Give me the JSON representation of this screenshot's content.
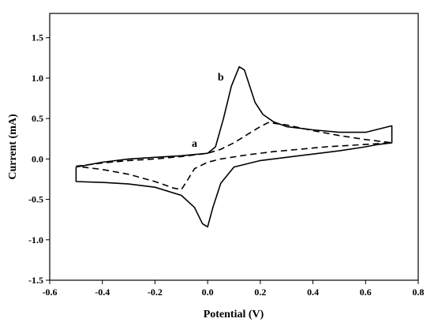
{
  "chart_data": {
    "type": "line",
    "title": "",
    "xlabel": "Potential (V)",
    "ylabel": "Current (mA)",
    "xlim": [
      -0.6,
      0.8
    ],
    "ylim": [
      -1.5,
      1.8
    ],
    "x_ticks": [
      "-0.6",
      "-0.4",
      "-0.2",
      "0.0",
      "0.2",
      "0.4",
      "0.6",
      "0.8"
    ],
    "y_ticks": [
      "-1.5",
      "-1.0",
      "-0.5",
      "0.0",
      "0.5",
      "1.0",
      "1.5"
    ],
    "grid": false,
    "series": [
      {
        "name": "a",
        "style": "dashed",
        "color": "#000000",
        "points": [
          [
            -0.5,
            -0.09
          ],
          [
            -0.4,
            -0.05
          ],
          [
            -0.3,
            -0.02
          ],
          [
            -0.2,
            0.0
          ],
          [
            -0.1,
            0.03
          ],
          [
            0.0,
            0.07
          ],
          [
            0.05,
            0.12
          ],
          [
            0.1,
            0.2
          ],
          [
            0.15,
            0.3
          ],
          [
            0.2,
            0.4
          ],
          [
            0.23,
            0.45
          ],
          [
            0.3,
            0.42
          ],
          [
            0.4,
            0.35
          ],
          [
            0.5,
            0.29
          ],
          [
            0.6,
            0.24
          ],
          [
            0.7,
            0.2
          ],
          [
            0.65,
            0.19
          ],
          [
            0.55,
            0.17
          ],
          [
            0.45,
            0.15
          ],
          [
            0.35,
            0.12
          ],
          [
            0.25,
            0.09
          ],
          [
            0.15,
            0.05
          ],
          [
            0.05,
            0.0
          ],
          [
            0.0,
            -0.04
          ],
          [
            -0.05,
            -0.12
          ],
          [
            -0.08,
            -0.28
          ],
          [
            -0.1,
            -0.38
          ],
          [
            -0.13,
            -0.36
          ],
          [
            -0.2,
            -0.28
          ],
          [
            -0.3,
            -0.19
          ],
          [
            -0.4,
            -0.13
          ],
          [
            -0.5,
            -0.09
          ]
        ]
      },
      {
        "name": "b",
        "style": "solid",
        "color": "#000000",
        "points": [
          [
            -0.5,
            -0.1
          ],
          [
            -0.4,
            -0.04
          ],
          [
            -0.3,
            0.0
          ],
          [
            -0.2,
            0.02
          ],
          [
            -0.1,
            0.04
          ],
          [
            0.0,
            0.07
          ],
          [
            0.03,
            0.15
          ],
          [
            0.06,
            0.5
          ],
          [
            0.09,
            0.9
          ],
          [
            0.12,
            1.14
          ],
          [
            0.14,
            1.1
          ],
          [
            0.16,
            0.9
          ],
          [
            0.18,
            0.7
          ],
          [
            0.21,
            0.55
          ],
          [
            0.25,
            0.46
          ],
          [
            0.3,
            0.4
          ],
          [
            0.4,
            0.36
          ],
          [
            0.5,
            0.33
          ],
          [
            0.6,
            0.33
          ],
          [
            0.7,
            0.41
          ],
          [
            0.7,
            0.2
          ],
          [
            0.65,
            0.18
          ],
          [
            0.6,
            0.15
          ],
          [
            0.5,
            0.1
          ],
          [
            0.4,
            0.06
          ],
          [
            0.3,
            0.02
          ],
          [
            0.2,
            -0.02
          ],
          [
            0.1,
            -0.1
          ],
          [
            0.05,
            -0.3
          ],
          [
            0.02,
            -0.6
          ],
          [
            0.0,
            -0.84
          ],
          [
            -0.02,
            -0.8
          ],
          [
            -0.05,
            -0.6
          ],
          [
            -0.1,
            -0.45
          ],
          [
            -0.2,
            -0.35
          ],
          [
            -0.3,
            -0.31
          ],
          [
            -0.4,
            -0.29
          ],
          [
            -0.5,
            -0.28
          ],
          [
            -0.5,
            -0.1
          ]
        ]
      }
    ],
    "annotations": [
      {
        "text": "a",
        "x": -0.05,
        "y": 0.15
      },
      {
        "text": "b",
        "x": 0.05,
        "y": 0.97
      }
    ]
  }
}
